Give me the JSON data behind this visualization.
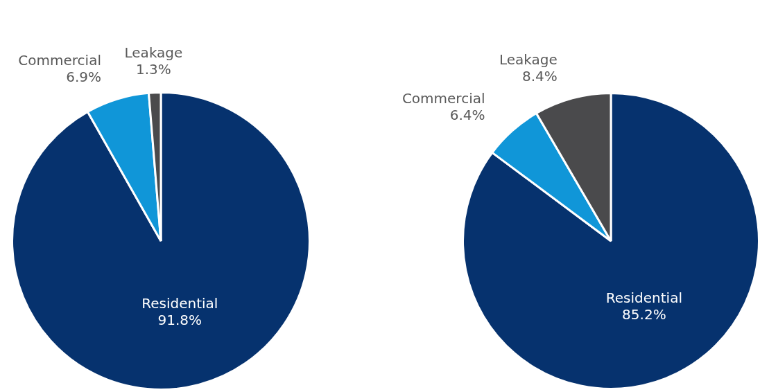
{
  "chart_data": [
    {
      "type": "pie",
      "categories": [
        "Residential",
        "Commercial",
        "Leakage"
      ],
      "values": [
        91.8,
        6.9,
        1.3
      ],
      "colors": [
        "#06326e",
        "#1096d8",
        "#4a4a4c"
      ],
      "value_labels": [
        "91.8%",
        "6.9%",
        "1.3%"
      ],
      "legend": false
    },
    {
      "type": "pie",
      "categories": [
        "Residential",
        "Commercial",
        "Leakage"
      ],
      "values": [
        85.2,
        6.4,
        8.4
      ],
      "colors": [
        "#06326e",
        "#1096d8",
        "#4a4a4c"
      ],
      "value_labels": [
        "85.2%",
        "6.4%",
        "8.4%"
      ],
      "legend": false
    }
  ]
}
